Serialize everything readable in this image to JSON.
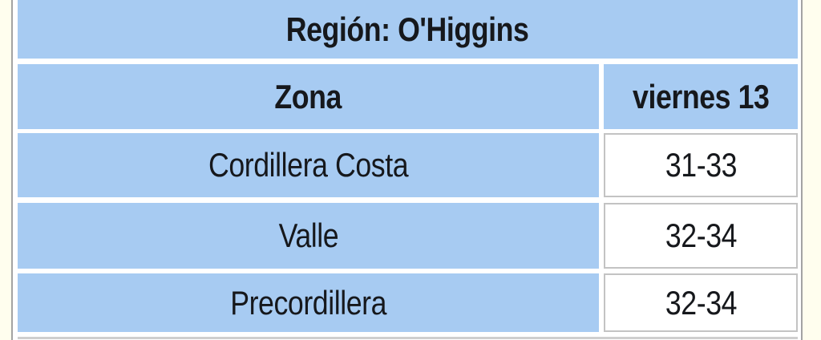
{
  "page": {
    "background": "#fffeee"
  },
  "table": {
    "title": "Región: O'Higgins",
    "columns": [
      "Zona",
      "viernes 13"
    ],
    "rows": [
      {
        "zone": "Cordillera Costa",
        "temp": "31-33"
      },
      {
        "zone": "Valle",
        "temp": "32-34"
      },
      {
        "zone": "Precordillera",
        "temp": "32-34"
      }
    ],
    "colors": {
      "cell_blue": "#a7cbf2",
      "text_dark": "#16181c",
      "value_cell_border": "#c3c3c3",
      "outer_border": "#a3a3a3",
      "page_background": "#fffeee"
    }
  }
}
